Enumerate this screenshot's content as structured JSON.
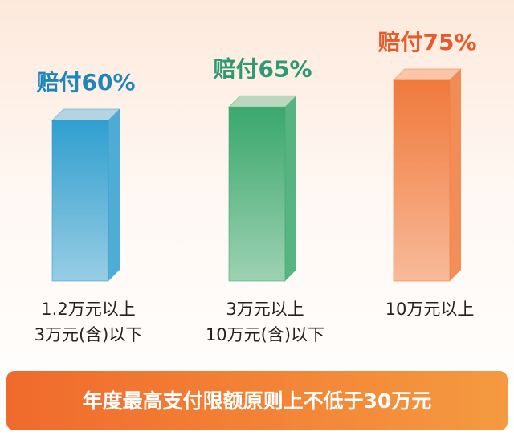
{
  "chart_data": {
    "type": "bar",
    "categories": [
      [
        "1.2万元以上",
        "3万元(含)以下"
      ],
      [
        "3万元以上",
        "10万元(含)以下"
      ],
      [
        "10万元以上"
      ]
    ],
    "values": [
      60,
      65,
      75
    ],
    "value_labels": [
      "赔付60%",
      "赔付65%",
      "赔付75%"
    ],
    "colors": [
      "#2f9fd0",
      "#3aa86e",
      "#f07a3c"
    ],
    "label_colors": [
      "#1f86b8",
      "#2f9a72",
      "#e85a2a"
    ],
    "footer": "年度最高支付限额原则上不低于30万元"
  }
}
